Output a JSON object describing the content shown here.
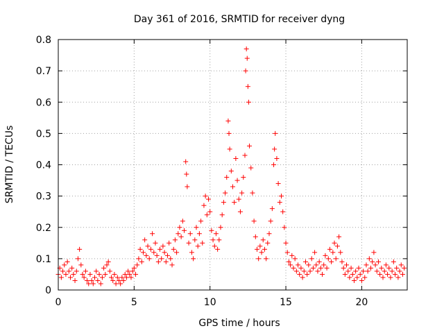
{
  "chart_data": {
    "type": "scatter",
    "title": "Day 361 of 2016, SRMTID for receiver dyng",
    "xlabel": "GPS time / hours",
    "ylabel": "SRMTID / TECUs",
    "xlim": [
      0,
      23
    ],
    "ylim": [
      0,
      0.8
    ],
    "x_ticks": [
      0,
      5,
      10,
      15,
      20
    ],
    "y_ticks": [
      0,
      0.1,
      0.2,
      0.3,
      0.4,
      0.5,
      0.6,
      0.7,
      0.8
    ],
    "x_tick_labels": [
      "0",
      "5",
      "10",
      "15",
      "20"
    ],
    "y_tick_labels": [
      "0",
      "0.1",
      "0.2",
      "0.3",
      "0.4",
      "0.5",
      "0.6",
      "0.7",
      "0.8"
    ],
    "grid": true,
    "marker": "+",
    "marker_color": "#ff0000",
    "series": [
      {
        "name": "SRMTID",
        "points": [
          [
            0.0,
            0.05
          ],
          [
            0.1,
            0.07
          ],
          [
            0.2,
            0.04
          ],
          [
            0.3,
            0.06
          ],
          [
            0.4,
            0.08
          ],
          [
            0.5,
            0.05
          ],
          [
            0.6,
            0.09
          ],
          [
            0.7,
            0.06
          ],
          [
            0.8,
            0.04
          ],
          [
            0.9,
            0.07
          ],
          [
            1.0,
            0.05
          ],
          [
            1.1,
            0.03
          ],
          [
            1.2,
            0.06
          ],
          [
            1.3,
            0.1
          ],
          [
            1.4,
            0.13
          ],
          [
            1.5,
            0.08
          ],
          [
            1.6,
            0.05
          ],
          [
            1.7,
            0.04
          ],
          [
            1.8,
            0.06
          ],
          [
            1.9,
            0.03
          ],
          [
            2.0,
            0.02
          ],
          [
            2.1,
            0.05
          ],
          [
            2.2,
            0.03
          ],
          [
            2.3,
            0.02
          ],
          [
            2.4,
            0.04
          ],
          [
            2.5,
            0.06
          ],
          [
            2.6,
            0.03
          ],
          [
            2.7,
            0.05
          ],
          [
            2.8,
            0.02
          ],
          [
            2.9,
            0.04
          ],
          [
            3.0,
            0.07
          ],
          [
            3.1,
            0.05
          ],
          [
            3.2,
            0.08
          ],
          [
            3.3,
            0.09
          ],
          [
            3.4,
            0.06
          ],
          [
            3.5,
            0.04
          ],
          [
            3.6,
            0.03
          ],
          [
            3.7,
            0.05
          ],
          [
            3.8,
            0.02
          ],
          [
            3.9,
            0.04
          ],
          [
            4.0,
            0.03
          ],
          [
            4.1,
            0.02
          ],
          [
            4.2,
            0.04
          ],
          [
            4.3,
            0.03
          ],
          [
            4.4,
            0.05
          ],
          [
            4.5,
            0.04
          ],
          [
            4.6,
            0.06
          ],
          [
            4.7,
            0.05
          ],
          [
            4.8,
            0.04
          ],
          [
            4.9,
            0.06
          ],
          [
            5.0,
            0.07
          ],
          [
            5.1,
            0.05
          ],
          [
            5.2,
            0.08
          ],
          [
            5.3,
            0.1
          ],
          [
            5.4,
            0.13
          ],
          [
            5.5,
            0.09
          ],
          [
            5.6,
            0.12
          ],
          [
            5.7,
            0.16
          ],
          [
            5.8,
            0.11
          ],
          [
            5.9,
            0.14
          ],
          [
            6.0,
            0.1
          ],
          [
            6.1,
            0.13
          ],
          [
            6.2,
            0.18
          ],
          [
            6.3,
            0.12
          ],
          [
            6.4,
            0.15
          ],
          [
            6.5,
            0.11
          ],
          [
            6.6,
            0.09
          ],
          [
            6.7,
            0.13
          ],
          [
            6.8,
            0.1
          ],
          [
            6.9,
            0.14
          ],
          [
            7.0,
            0.12
          ],
          [
            7.1,
            0.09
          ],
          [
            7.2,
            0.11
          ],
          [
            7.3,
            0.15
          ],
          [
            7.4,
            0.1
          ],
          [
            7.5,
            0.08
          ],
          [
            7.6,
            0.13
          ],
          [
            7.7,
            0.16
          ],
          [
            7.8,
            0.12
          ],
          [
            7.9,
            0.18
          ],
          [
            8.0,
            0.2
          ],
          [
            8.1,
            0.17
          ],
          [
            8.2,
            0.22
          ],
          [
            8.3,
            0.19
          ],
          [
            8.4,
            0.41
          ],
          [
            8.45,
            0.37
          ],
          [
            8.5,
            0.33
          ],
          [
            8.6,
            0.15
          ],
          [
            8.7,
            0.18
          ],
          [
            8.8,
            0.12
          ],
          [
            8.9,
            0.1
          ],
          [
            9.0,
            0.16
          ],
          [
            9.1,
            0.2
          ],
          [
            9.2,
            0.14
          ],
          [
            9.3,
            0.18
          ],
          [
            9.4,
            0.22
          ],
          [
            9.5,
            0.15
          ],
          [
            9.6,
            0.27
          ],
          [
            9.7,
            0.3
          ],
          [
            9.8,
            0.24
          ],
          [
            9.9,
            0.29
          ],
          [
            10.0,
            0.25
          ],
          [
            10.1,
            0.19
          ],
          [
            10.2,
            0.16
          ],
          [
            10.3,
            0.14
          ],
          [
            10.4,
            0.18
          ],
          [
            10.5,
            0.13
          ],
          [
            10.6,
            0.16
          ],
          [
            10.7,
            0.2
          ],
          [
            10.8,
            0.24
          ],
          [
            10.9,
            0.28
          ],
          [
            11.0,
            0.31
          ],
          [
            11.1,
            0.36
          ],
          [
            11.2,
            0.54
          ],
          [
            11.25,
            0.5
          ],
          [
            11.3,
            0.45
          ],
          [
            11.4,
            0.38
          ],
          [
            11.5,
            0.33
          ],
          [
            11.6,
            0.28
          ],
          [
            11.7,
            0.42
          ],
          [
            11.8,
            0.35
          ],
          [
            11.9,
            0.29
          ],
          [
            12.0,
            0.25
          ],
          [
            12.1,
            0.31
          ],
          [
            12.2,
            0.36
          ],
          [
            12.3,
            0.43
          ],
          [
            12.35,
            0.7
          ],
          [
            12.4,
            0.77
          ],
          [
            12.45,
            0.74
          ],
          [
            12.5,
            0.65
          ],
          [
            12.55,
            0.6
          ],
          [
            12.6,
            0.46
          ],
          [
            12.7,
            0.39
          ],
          [
            12.8,
            0.31
          ],
          [
            12.9,
            0.22
          ],
          [
            13.0,
            0.17
          ],
          [
            13.1,
            0.13
          ],
          [
            13.2,
            0.1
          ],
          [
            13.3,
            0.14
          ],
          [
            13.4,
            0.12
          ],
          [
            13.5,
            0.16
          ],
          [
            13.6,
            0.13
          ],
          [
            13.7,
            0.1
          ],
          [
            13.8,
            0.15
          ],
          [
            13.9,
            0.18
          ],
          [
            14.0,
            0.22
          ],
          [
            14.1,
            0.26
          ],
          [
            14.2,
            0.4
          ],
          [
            14.25,
            0.45
          ],
          [
            14.3,
            0.5
          ],
          [
            14.4,
            0.42
          ],
          [
            14.5,
            0.34
          ],
          [
            14.6,
            0.28
          ],
          [
            14.7,
            0.3
          ],
          [
            14.8,
            0.25
          ],
          [
            14.9,
            0.2
          ],
          [
            15.0,
            0.15
          ],
          [
            15.1,
            0.12
          ],
          [
            15.2,
            0.09
          ],
          [
            15.3,
            0.08
          ],
          [
            15.4,
            0.11
          ],
          [
            15.5,
            0.07
          ],
          [
            15.6,
            0.1
          ],
          [
            15.7,
            0.06
          ],
          [
            15.8,
            0.08
          ],
          [
            15.9,
            0.05
          ],
          [
            16.0,
            0.07
          ],
          [
            16.1,
            0.04
          ],
          [
            16.2,
            0.06
          ],
          [
            16.3,
            0.09
          ],
          [
            16.4,
            0.05
          ],
          [
            16.5,
            0.08
          ],
          [
            16.6,
            0.06
          ],
          [
            16.7,
            0.1
          ],
          [
            16.8,
            0.07
          ],
          [
            16.9,
            0.12
          ],
          [
            17.0,
            0.08
          ],
          [
            17.1,
            0.06
          ],
          [
            17.2,
            0.09
          ],
          [
            17.3,
            0.07
          ],
          [
            17.4,
            0.05
          ],
          [
            17.5,
            0.08
          ],
          [
            17.6,
            0.11
          ],
          [
            17.7,
            0.07
          ],
          [
            17.8,
            0.1
          ],
          [
            17.9,
            0.13
          ],
          [
            18.0,
            0.09
          ],
          [
            18.1,
            0.12
          ],
          [
            18.2,
            0.15
          ],
          [
            18.3,
            0.1
          ],
          [
            18.4,
            0.14
          ],
          [
            18.5,
            0.17
          ],
          [
            18.6,
            0.12
          ],
          [
            18.7,
            0.09
          ],
          [
            18.8,
            0.07
          ],
          [
            18.9,
            0.05
          ],
          [
            19.0,
            0.08
          ],
          [
            19.1,
            0.06
          ],
          [
            19.2,
            0.04
          ],
          [
            19.3,
            0.07
          ],
          [
            19.4,
            0.05
          ],
          [
            19.5,
            0.03
          ],
          [
            19.6,
            0.06
          ],
          [
            19.7,
            0.04
          ],
          [
            19.8,
            0.07
          ],
          [
            19.9,
            0.05
          ],
          [
            20.0,
            0.03
          ],
          [
            20.1,
            0.06
          ],
          [
            20.2,
            0.04
          ],
          [
            20.3,
            0.08
          ],
          [
            20.4,
            0.06
          ],
          [
            20.5,
            0.1
          ],
          [
            20.6,
            0.07
          ],
          [
            20.7,
            0.09
          ],
          [
            20.8,
            0.12
          ],
          [
            20.9,
            0.08
          ],
          [
            21.0,
            0.06
          ],
          [
            21.1,
            0.09
          ],
          [
            21.2,
            0.05
          ],
          [
            21.3,
            0.07
          ],
          [
            21.4,
            0.04
          ],
          [
            21.5,
            0.06
          ],
          [
            21.6,
            0.08
          ],
          [
            21.7,
            0.05
          ],
          [
            21.8,
            0.07
          ],
          [
            21.9,
            0.04
          ],
          [
            22.0,
            0.06
          ],
          [
            22.1,
            0.09
          ],
          [
            22.2,
            0.05
          ],
          [
            22.3,
            0.07
          ],
          [
            22.4,
            0.04
          ],
          [
            22.5,
            0.06
          ],
          [
            22.6,
            0.08
          ],
          [
            22.7,
            0.05
          ],
          [
            22.8,
            0.07
          ]
        ]
      }
    ]
  }
}
